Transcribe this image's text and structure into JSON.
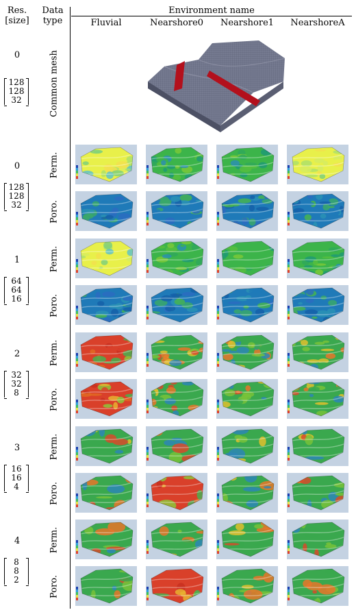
{
  "header": {
    "res_label_line1": "Res.",
    "res_label_line2": "[size]",
    "data_label_line1": "Data",
    "data_label_line2": "type",
    "env_title": "Environment name",
    "columns": [
      "Fluvial",
      "Nearshore0",
      "Nearshore1",
      "NearshoreA"
    ]
  },
  "levels": [
    {
      "res": "0",
      "size": [
        "128",
        "128",
        "32"
      ],
      "label": "Common mesh"
    },
    {
      "res": "0",
      "size": [
        "128",
        "128",
        "32"
      ],
      "rows": [
        "Perm.",
        "Poro."
      ]
    },
    {
      "res": "1",
      "size": [
        "64",
        "64",
        "16"
      ],
      "rows": [
        "Perm.",
        "Poro."
      ]
    },
    {
      "res": "2",
      "size": [
        "32",
        "32",
        "8"
      ],
      "rows": [
        "Perm.",
        "Poro."
      ]
    },
    {
      "res": "3",
      "size": [
        "16",
        "16",
        "4"
      ],
      "rows": [
        "Perm.",
        "Poro."
      ]
    },
    {
      "res": "4",
      "size": [
        "8",
        "8",
        "2"
      ],
      "rows": [
        "Perm.",
        "Poro."
      ]
    }
  ],
  "colors": {
    "mesh_gray": "#6f7388",
    "fault_red": "#b3101c",
    "thumb_bg": "#c4d2e2"
  }
}
